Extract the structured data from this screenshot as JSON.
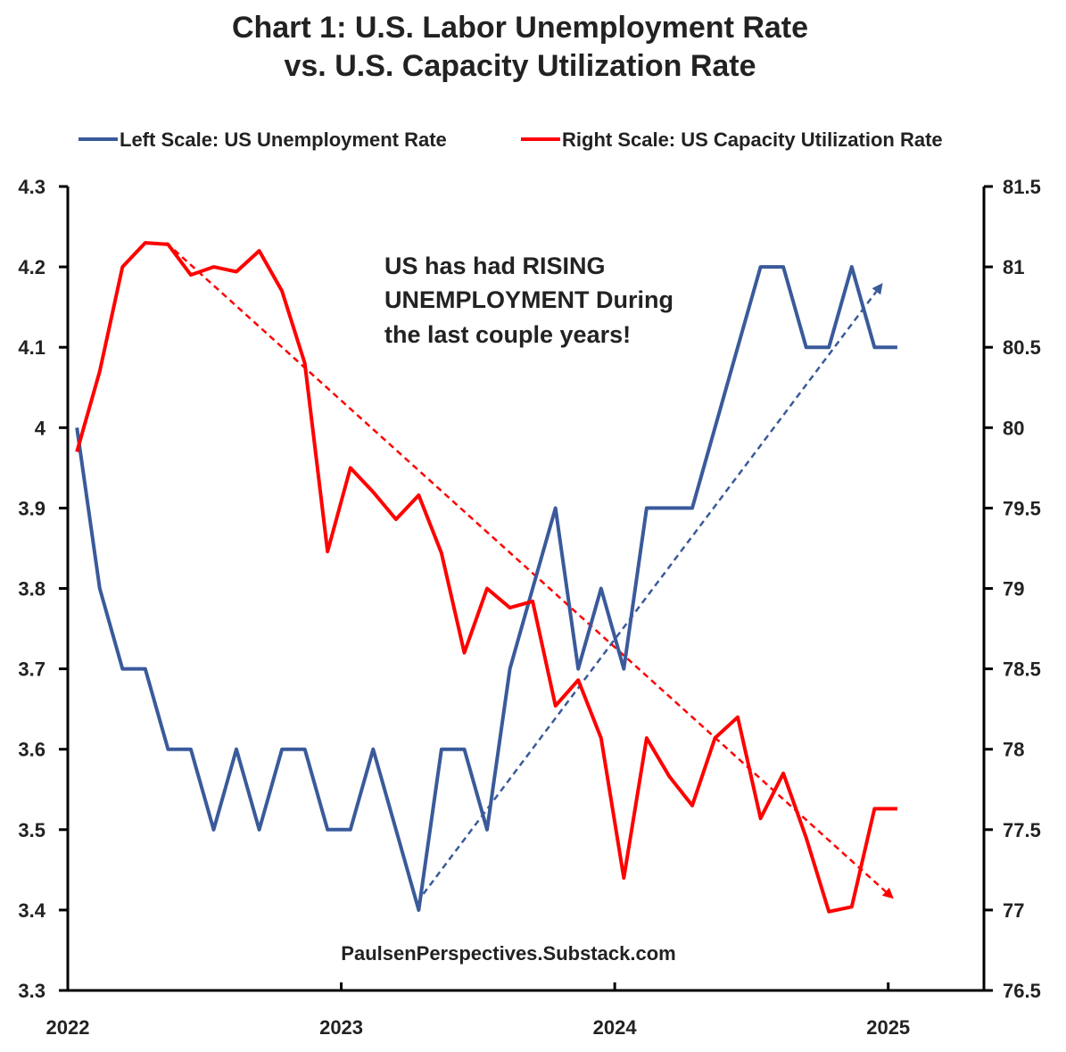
{
  "title": {
    "line1": "Chart 1: U.S. Labor Unemployment Rate",
    "line2": "vs. U.S. Capacity Utilization Rate"
  },
  "legend": {
    "left": "Left Scale: US Unemployment Rate",
    "right": "Right Scale: US Capacity Utilization Rate"
  },
  "annotation": [
    "US has had RISING",
    "UNEMPLOYMENT During",
    "the last couple years!"
  ],
  "credit": "PaulsenPerspectives.Substack.com",
  "colors": {
    "left_series": "#3A5A9A",
    "right_series": "#FF0000",
    "axis": "#000000"
  },
  "chart_data": {
    "type": "line",
    "x_range": [
      2022.0,
      2025.35
    ],
    "x_ticks": [
      {
        "value": 2022,
        "label": "2022"
      },
      {
        "value": 2023,
        "label": "2023"
      },
      {
        "value": 2024,
        "label": "2024"
      },
      {
        "value": 2025,
        "label": "2025"
      }
    ],
    "y_left": {
      "range": [
        3.3,
        4.3
      ],
      "ticks": [
        "3.3",
        "3.4",
        "3.5",
        "3.6",
        "3.7",
        "3.8",
        "3.9",
        "4",
        "4.1",
        "4.2",
        "4.3"
      ]
    },
    "y_right": {
      "range": [
        76.5,
        81.5
      ],
      "ticks": [
        "76.5",
        "77",
        "77.5",
        "78",
        "78.5",
        "79",
        "79.5",
        "80",
        "80.5",
        "81",
        "81.5"
      ]
    },
    "series": [
      {
        "name": "Left Scale: US Unemployment Rate",
        "axis": "left",
        "start": 2022.0333,
        "step": 0.08333,
        "values": [
          4.0,
          3.8,
          3.7,
          3.7,
          3.6,
          3.6,
          3.5,
          3.6,
          3.5,
          3.6,
          3.6,
          3.5,
          3.5,
          3.6,
          3.5,
          3.4,
          3.6,
          3.6,
          3.5,
          3.7,
          3.8,
          3.9,
          3.7,
          3.8,
          3.7,
          3.9,
          3.9,
          3.9,
          4.0,
          4.1,
          4.2,
          4.2,
          4.1,
          4.1,
          4.2,
          4.1,
          4.1
        ]
      },
      {
        "name": "Right Scale: US Capacity Utilization Rate",
        "axis": "right",
        "start": 2022.0333,
        "step": 0.08333,
        "values": [
          79.85,
          80.35,
          81.0,
          81.15,
          81.14,
          80.95,
          81.0,
          80.97,
          81.1,
          80.85,
          80.4,
          79.23,
          79.75,
          79.6,
          79.43,
          79.58,
          79.22,
          78.6,
          79.0,
          78.88,
          78.92,
          78.27,
          78.43,
          78.07,
          77.2,
          78.07,
          77.83,
          77.65,
          78.07,
          78.2,
          77.57,
          77.85,
          77.45,
          76.99,
          77.02,
          77.63,
          77.63
        ]
      }
    ],
    "trendlines": [
      {
        "series": "Left Scale: US Unemployment Rate",
        "axis": "left",
        "style": "dashed",
        "from": [
          2023.3,
          3.42
        ],
        "to": [
          2024.98,
          4.18
        ]
      },
      {
        "series": "Right Scale: US Capacity Utilization Rate",
        "axis": "right",
        "style": "dashed",
        "from": [
          2022.36,
          81.15
        ],
        "to": [
          2025.02,
          77.07
        ]
      }
    ]
  }
}
